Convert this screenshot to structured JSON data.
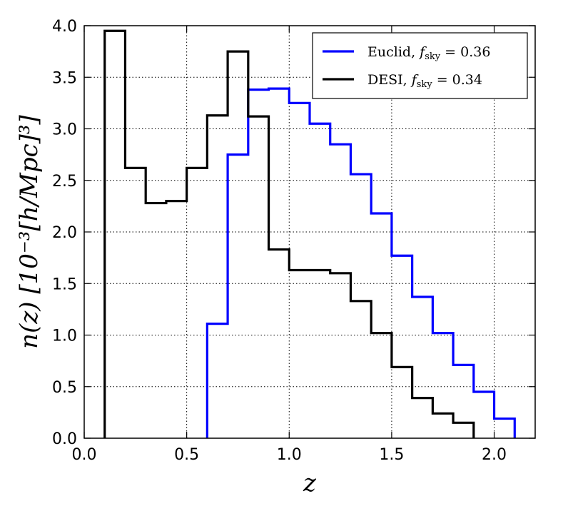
{
  "chart_data": {
    "type": "step",
    "xlabel": "z",
    "ylabel": "n(z)  [10⁻³[h/Mpc]³]",
    "xlim": [
      0.0,
      2.2
    ],
    "ylim": [
      0.0,
      4.0
    ],
    "xticks": [
      "0.0",
      "0.5",
      "1.0",
      "1.5",
      "2.0"
    ],
    "yticks": [
      "0.0",
      "0.5",
      "1.0",
      "1.5",
      "2.0",
      "2.5",
      "3.0",
      "3.5",
      "4.0"
    ],
    "grid": true,
    "legend_position": "top-right",
    "series": [
      {
        "name": "Euclid,  f_sky = 0.36",
        "name_main": "Euclid,",
        "name_f": "f",
        "name_sub": "sky",
        "name_val": " = 0.36",
        "color": "#0000ff",
        "bin_edges": [
          0.6,
          0.7,
          0.8,
          0.9,
          1.0,
          1.1,
          1.2,
          1.3,
          1.4,
          1.5,
          1.6,
          1.7,
          1.8,
          1.9,
          2.0,
          2.1
        ],
        "values": [
          1.11,
          2.75,
          3.38,
          3.39,
          3.25,
          3.05,
          2.85,
          2.56,
          2.18,
          1.77,
          1.37,
          1.02,
          0.71,
          0.45,
          0.19
        ]
      },
      {
        "name": "DESI,  f_sky = 0.34",
        "name_main": "DESI,",
        "name_f": "f",
        "name_sub": "sky",
        "name_val": " = 0.34",
        "color": "#000000",
        "bin_edges": [
          0.1,
          0.2,
          0.3,
          0.4,
          0.5,
          0.6,
          0.7,
          0.8,
          0.9,
          1.0,
          1.1,
          1.2,
          1.3,
          1.4,
          1.5,
          1.6,
          1.7,
          1.8,
          1.9
        ],
        "values": [
          3.95,
          2.62,
          2.28,
          2.3,
          2.62,
          3.13,
          3.75,
          3.12,
          1.83,
          1.63,
          1.63,
          1.6,
          1.33,
          1.02,
          0.69,
          0.39,
          0.24,
          0.15
        ]
      }
    ]
  }
}
